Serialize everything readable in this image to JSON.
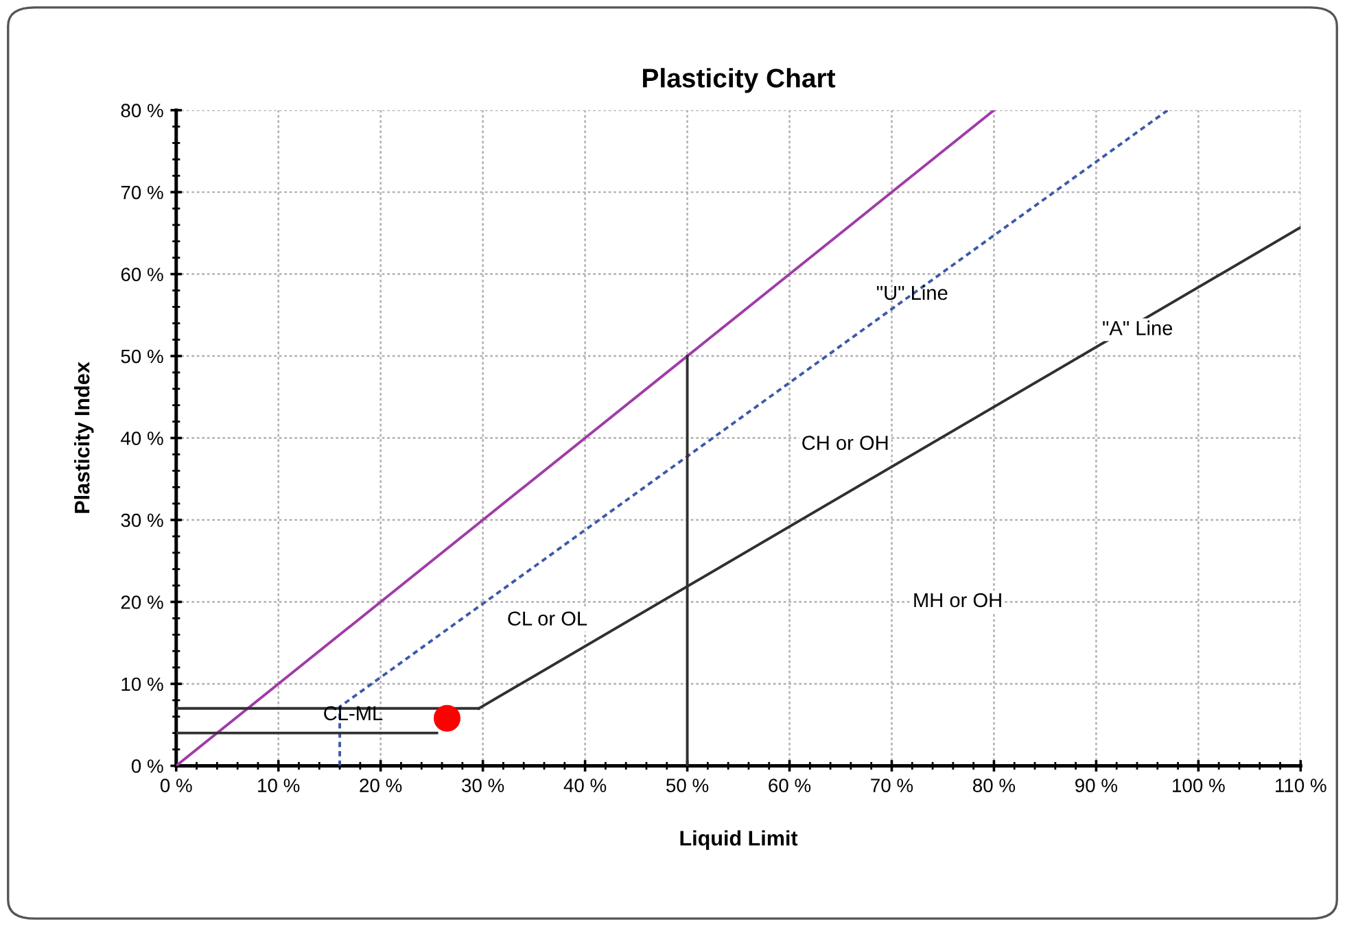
{
  "chart_data": {
    "type": "line",
    "title": "Plasticity Chart",
    "xlabel": "Liquid Limit",
    "ylabel": "Plasticity Index",
    "xlim": [
      0,
      110
    ],
    "ylim": [
      0,
      80
    ],
    "xticks": [
      {
        "value": 0,
        "label": "0 %"
      },
      {
        "value": 10,
        "label": "10 %"
      },
      {
        "value": 20,
        "label": "20 %"
      },
      {
        "value": 30,
        "label": "30 %"
      },
      {
        "value": 40,
        "label": "40 %"
      },
      {
        "value": 50,
        "label": "50 %"
      },
      {
        "value": 60,
        "label": "60 %"
      },
      {
        "value": 70,
        "label": "70 %"
      },
      {
        "value": 80,
        "label": "80 %"
      },
      {
        "value": 90,
        "label": "90 %"
      },
      {
        "value": 100,
        "label": "100 %"
      },
      {
        "value": 110,
        "label": "110 %"
      }
    ],
    "yticks": [
      {
        "value": 0,
        "label": "0 %"
      },
      {
        "value": 10,
        "label": "10 %"
      },
      {
        "value": 20,
        "label": "20 %"
      },
      {
        "value": 30,
        "label": "30 %"
      },
      {
        "value": 40,
        "label": "40 %"
      },
      {
        "value": 50,
        "label": "50 %"
      },
      {
        "value": 60,
        "label": "60 %"
      },
      {
        "value": 70,
        "label": "70 %"
      },
      {
        "value": 80,
        "label": "80 %"
      }
    ],
    "grid": true,
    "legend": false,
    "series": [
      {
        "color": "#a03ca8",
        "x": [
          0,
          80
        ],
        "values": [
          0,
          80
        ],
        "line_style": "solid",
        "marker": "none"
      },
      {
        "color": "#3c5aa8",
        "x": [
          16,
          16,
          97
        ],
        "values": [
          0,
          7.2,
          80
        ],
        "line_style": "dashed",
        "marker": "none"
      },
      {
        "color": "#303030",
        "x": [
          29.6,
          110
        ],
        "values": [
          7,
          65.7
        ],
        "line_style": "solid",
        "marker": "none"
      },
      {
        "color": "#303030",
        "x": [
          0,
          29.6
        ],
        "values": [
          7,
          7
        ],
        "line_style": "solid",
        "marker": "none"
      },
      {
        "color": "#303030",
        "x": [
          0,
          25.5
        ],
        "values": [
          4,
          4
        ],
        "line_style": "solid",
        "marker": "none"
      },
      {
        "color": "#303030",
        "x": [
          50,
          50
        ],
        "values": [
          0,
          50
        ],
        "line_style": "solid",
        "marker": "none"
      },
      {
        "type": "scatter",
        "color": "#ff0000",
        "x": [
          26.5
        ],
        "values": [
          5.8
        ],
        "marker": "circle"
      }
    ],
    "annotations": [
      {
        "text": "\"U\" Line",
        "x": 72,
        "y": 57.5
      },
      "\"A\" Line",
      "CH or OH",
      "MH or OH",
      "CL or OL",
      {
        "text": "CL-ML",
        "x": 17.3,
        "y": 6.2
      }
    ]
  }
}
